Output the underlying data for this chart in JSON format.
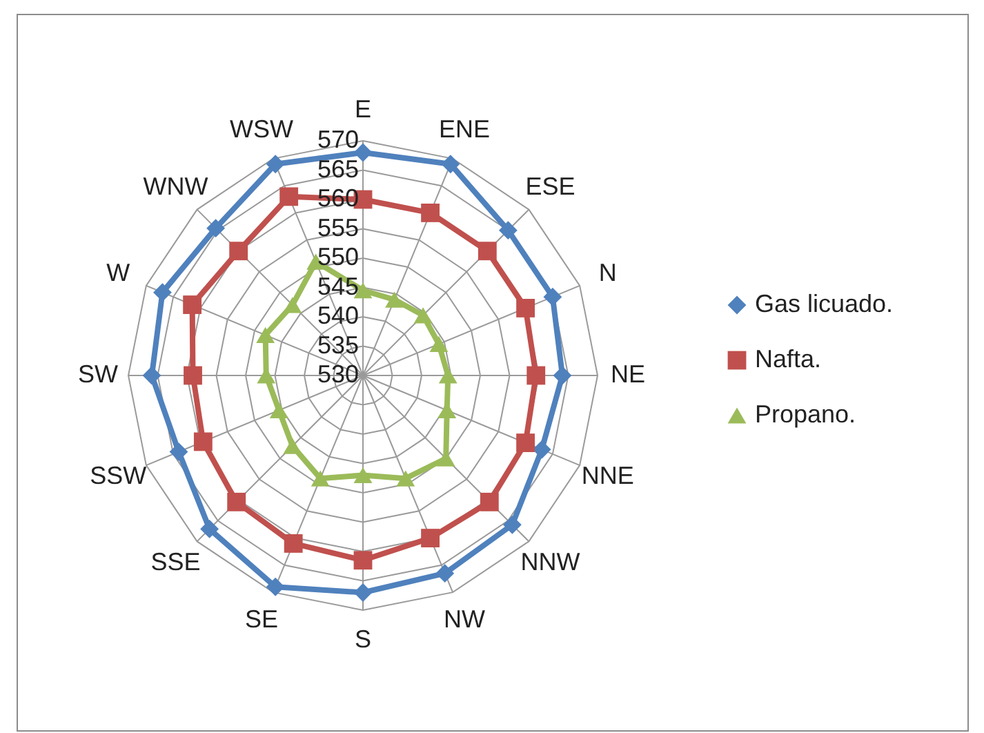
{
  "chart_data": {
    "type": "radar",
    "categories": [
      "E",
      "ENE",
      "ESE",
      "N",
      "NE",
      "NNE",
      "NNW",
      "NW",
      "S",
      "SE",
      "SSE",
      "SSW",
      "SW",
      "W",
      "WNW",
      "WSW"
    ],
    "series": [
      {
        "name": "Gas licuado.",
        "color": "#4f81bd",
        "marker": "diamond",
        "values": [
          568,
          569,
          565,
          565,
          564,
          563,
          566,
          566.5,
          567,
          569,
          567,
          564,
          566,
          567,
          565.5,
          569
        ]
      },
      {
        "name": "Nafta.",
        "color": "#c0504d",
        "marker": "square",
        "values": [
          560,
          560,
          560,
          560,
          559.5,
          560,
          560.5,
          560,
          561.5,
          561,
          560.5,
          559.5,
          559,
          561.5,
          560,
          563
        ]
      },
      {
        "name": "Propano.",
        "color": "#9bbb59",
        "marker": "triangle",
        "values": [
          544.5,
          544,
          544.5,
          544,
          544.5,
          545.5,
          550,
          549,
          547,
          549,
          547,
          545.5,
          546.5,
          548,
          547,
          551
        ]
      }
    ],
    "ylim": [
      530,
      570
    ],
    "yticks": [
      530,
      535,
      540,
      545,
      550,
      555,
      560,
      565,
      570
    ],
    "grid": true,
    "legend": "right"
  }
}
